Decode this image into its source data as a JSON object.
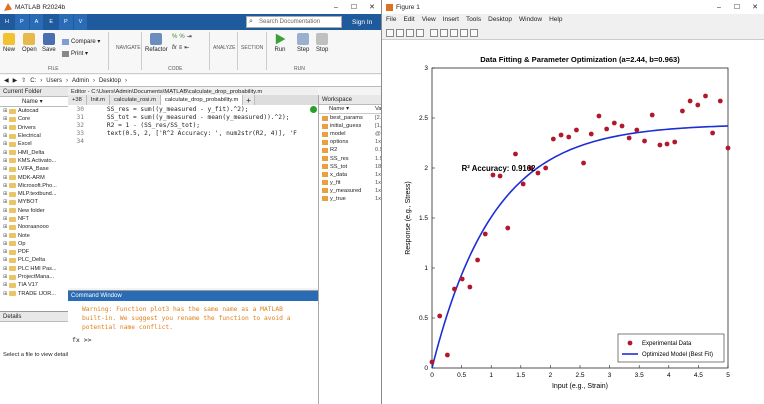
{
  "matlab": {
    "title": "MATLAB R2024b",
    "tabs": [
      "H",
      "P",
      "A",
      "E",
      "P",
      "V"
    ],
    "search_placeholder": "Search Documentation",
    "signin": "Sign In",
    "ribbon": {
      "new": "New",
      "open": "Open",
      "save": "Save",
      "compare": "Compare ▾",
      "print": "Print ▾",
      "file_group": "FILE",
      "navigate": "NAVIGATE",
      "refactor": "Refactor",
      "code_group": "CODE",
      "analyze": "ANALYZE",
      "section": "SECTION",
      "run": "Run",
      "step": "Step",
      "stop": "Stop",
      "run_group": "RUN"
    },
    "address": [
      "C:",
      "Users",
      "Admin",
      "Desktop"
    ],
    "current_folder": {
      "title": "Current Folder",
      "col": "Name ▾",
      "items": [
        "Autocad",
        "Core",
        "Drivers",
        "Electrical",
        "Excel",
        "HMI_Delta",
        "KMS.Activato...",
        "LVIFA_Base",
        "MDK-ARM",
        "Microsoft.Pho...",
        "MLP.textbund...",
        "MYBOT",
        "New folder",
        "NFT",
        "Nooraanooo",
        "Note",
        "Op",
        "PDF",
        "PLC_Delta",
        "PLC HMI Pas...",
        "ProjectMana...",
        "TIA V17",
        "TRADE IJOR..."
      ]
    },
    "details": {
      "title": "Details",
      "text": "Select a file to view details"
    },
    "editor": {
      "title": "Editor - C:\\Users\\Admin\\Documents\\MATLAB\\calculate_drop_probability.m",
      "tabs": [
        "+38",
        "Init.m",
        "calculate_rosi.m",
        "calculate_drop_probability.m"
      ],
      "lines": [
        {
          "n": "30",
          "t": "    SS_res = sum((y_measured - y_fit).^2);"
        },
        {
          "n": "31",
          "t": "    SS_tot = sum((y_measured - mean(y_measured)).^2);"
        },
        {
          "n": "32",
          "t": "    R2 = 1 - (SS_res/SS_tot);"
        },
        {
          "n": "33",
          "t": "    text(0.5, 2, ['R^2 Accuracy: ', num2str(R2, 4)], 'F"
        },
        {
          "n": "34",
          "t": ""
        }
      ]
    },
    "command_window": {
      "title": "Command Window",
      "warning": "Warning: Function plot3 has the same name as a MATLAB\nbuilt-in. We suggest you rename the function to avoid a\npotential name conflict.",
      "prompt": "fx >>"
    },
    "workspace": {
      "title": "Workspace",
      "col_name": "Name ▾",
      "col_value": "Va",
      "items": [
        {
          "name": "best_params",
          "value": "[2."
        },
        {
          "name": "initial_guess",
          "value": "[1,"
        },
        {
          "name": "model",
          "value": "@("
        },
        {
          "name": "options",
          "value": "1x"
        },
        {
          "name": "R2",
          "value": "0.9"
        },
        {
          "name": "SS_res",
          "value": "1.5"
        },
        {
          "name": "SS_tot",
          "value": "18"
        },
        {
          "name": "x_data",
          "value": "1x"
        },
        {
          "name": "y_fit",
          "value": "1x"
        },
        {
          "name": "y_measured",
          "value": "1x"
        },
        {
          "name": "y_true",
          "value": "1x"
        }
      ]
    }
  },
  "figure": {
    "title": "Figure 1",
    "menu": [
      "File",
      "Edit",
      "View",
      "Insert",
      "Tools",
      "Desktop",
      "Window",
      "Help"
    ]
  },
  "chart_data": {
    "type": "scatter",
    "title": "Data Fitting & Parameter Optimization (a=2.44, b=0.963)",
    "xlabel": "Input (e.g., Strain)",
    "ylabel": "Response (e.g., Stress)",
    "xlim": [
      0,
      5
    ],
    "ylim": [
      0,
      3
    ],
    "xticks": [
      "0",
      "0.5",
      "1",
      "1.5",
      "2",
      "2.5",
      "3",
      "3.5",
      "4",
      "4.5",
      "5"
    ],
    "yticks": [
      "0",
      "0.5",
      "1",
      "1.5",
      "2",
      "2.5",
      "3"
    ],
    "annotation": {
      "text": "R² Accuracy: 0.9162",
      "x": 0.5,
      "y": 2
    },
    "legend": {
      "position": "bottom-right",
      "entries": [
        "Experimental Data",
        "Optimized Model (Best Fit)"
      ]
    },
    "series": [
      {
        "name": "Experimental Data",
        "marker": "dot",
        "color": "#b2182b",
        "x": [
          0.0,
          0.13,
          0.26,
          0.38,
          0.51,
          0.64,
          0.77,
          0.9,
          1.03,
          1.15,
          1.28,
          1.41,
          1.54,
          1.67,
          1.79,
          1.92,
          2.05,
          2.18,
          2.31,
          2.44,
          2.56,
          2.69,
          2.82,
          2.95,
          3.08,
          3.21,
          3.33,
          3.46,
          3.59,
          3.72,
          3.85,
          3.97,
          4.1,
          4.23,
          4.36,
          4.49,
          4.62,
          4.74,
          4.87,
          5.0
        ],
        "y": [
          0.06,
          0.52,
          0.13,
          0.79,
          0.89,
          0.81,
          1.08,
          1.34,
          1.93,
          1.92,
          1.4,
          2.14,
          1.84,
          2.0,
          1.95,
          2.0,
          2.29,
          2.33,
          2.31,
          2.38,
          2.05,
          2.34,
          2.52,
          2.39,
          2.45,
          2.42,
          2.3,
          2.38,
          2.27,
          2.53,
          2.23,
          2.24,
          2.26,
          2.57,
          2.67,
          2.63,
          2.72,
          2.35,
          2.67,
          2.2
        ]
      },
      {
        "name": "Optimized Model (Best Fit)",
        "marker": "line",
        "color": "#1c2fd6",
        "model": "a*(1-exp(-b*x))",
        "a": 2.44,
        "b": 0.963
      }
    ],
    "grid": false
  }
}
